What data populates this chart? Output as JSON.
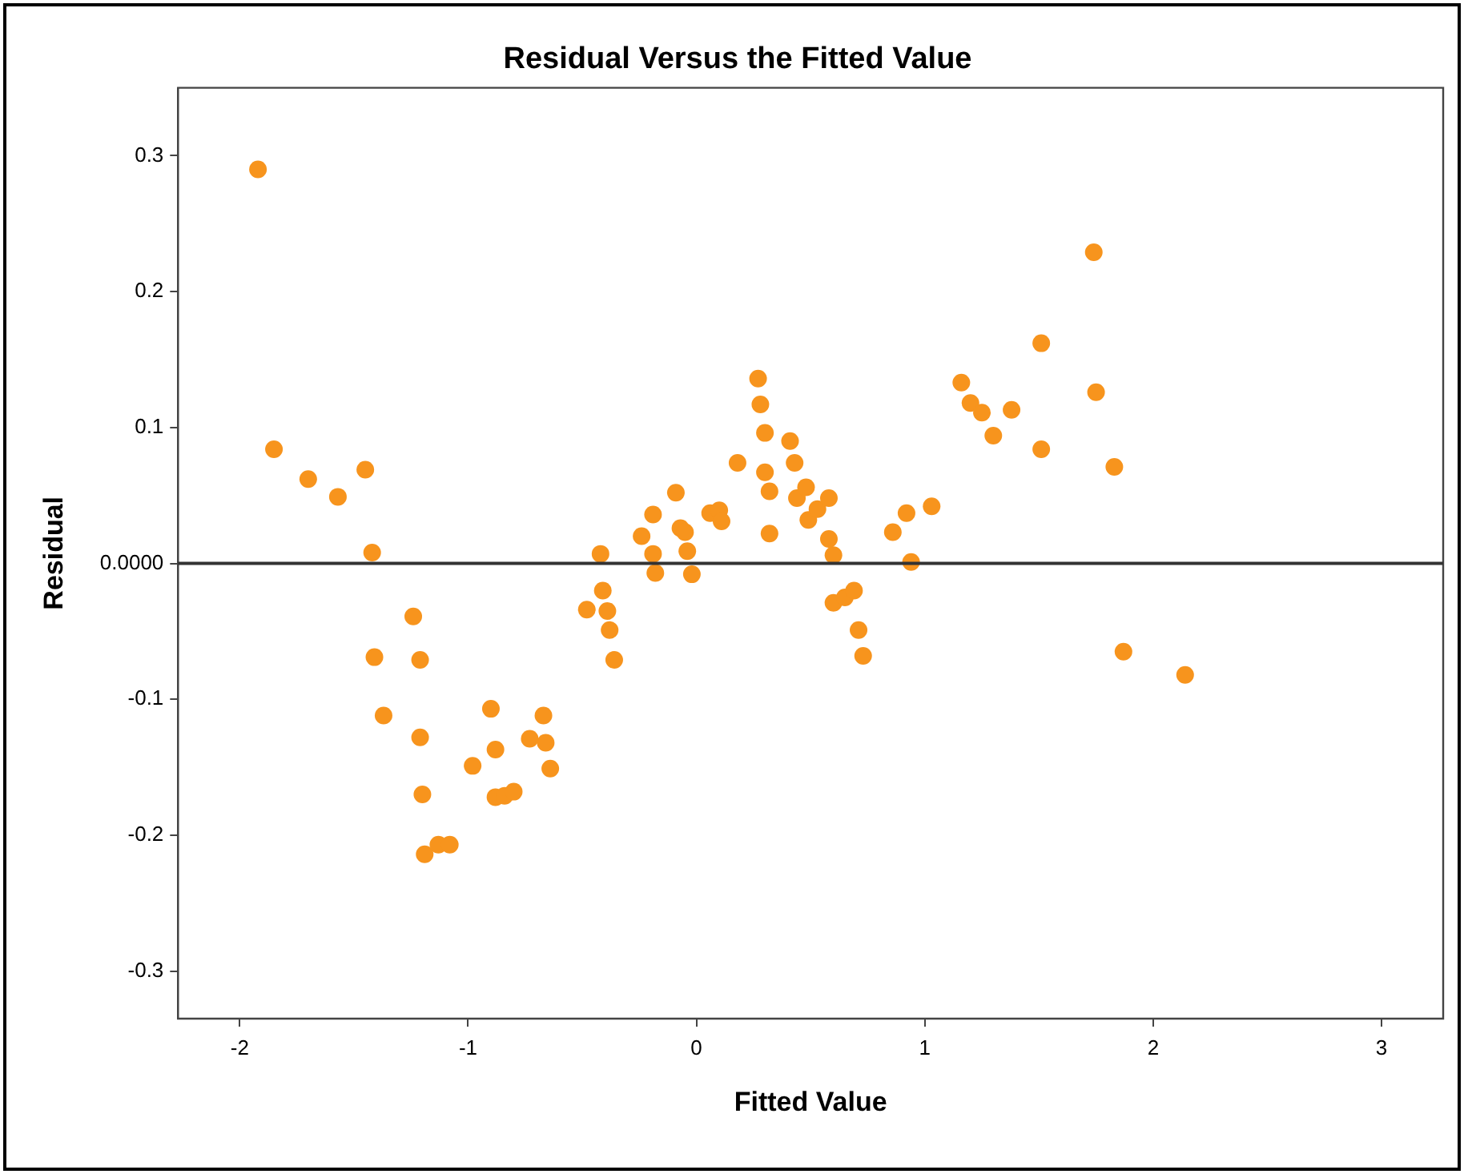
{
  "chart_data": {
    "type": "scatter",
    "title": "Residual Versus the Fitted Value",
    "xlabel": "Fitted Value",
    "ylabel": "Residual",
    "xlim": [
      -2.27,
      3.27
    ],
    "xticks": [
      -2,
      -1,
      0,
      1,
      2,
      3
    ],
    "ylim": [
      -0.335,
      0.35
    ],
    "yticks": [
      -0.3,
      -0.2,
      -0.1,
      {
        "value": 0,
        "label": "0.0000"
      },
      0.1,
      0.2,
      0.3
    ],
    "grid": false,
    "legend": false,
    "marker": "circle",
    "ref_lines": [
      {
        "axis": "y",
        "value": 0,
        "color": "#333333"
      }
    ],
    "series": [
      {
        "color": "#f7941d",
        "x": [
          -1.92,
          -1.85,
          -1.7,
          -1.57,
          -1.45,
          -1.42,
          -1.41,
          -1.37,
          -1.24,
          -1.21,
          -1.21,
          -1.2,
          -1.19,
          -1.13,
          -1.08,
          -0.98,
          -0.9,
          -0.88,
          -0.88,
          -0.84,
          -0.8,
          -0.73,
          -0.67,
          -0.66,
          -0.64,
          -0.48,
          -0.42,
          -0.41,
          -0.39,
          -0.38,
          -0.36,
          -0.24,
          -0.19,
          -0.19,
          -0.18,
          -0.09,
          -0.07,
          -0.05,
          -0.04,
          -0.02,
          0.06,
          0.1,
          0.11,
          0.18,
          0.27,
          0.28,
          0.3,
          0.3,
          0.32,
          0.32,
          0.41,
          0.43,
          0.44,
          0.48,
          0.49,
          0.53,
          0.58,
          0.58,
          0.6,
          0.6,
          0.65,
          0.69,
          0.71,
          0.73,
          0.86,
          0.92,
          0.94,
          1.03,
          1.16,
          1.2,
          1.25,
          1.3,
          1.38,
          1.51,
          1.51,
          1.74,
          1.75,
          1.83,
          1.87,
          2.14
        ],
        "values": [
          0.29,
          0.084,
          0.062,
          0.049,
          0.069,
          0.008,
          -0.069,
          -0.112,
          -0.039,
          -0.071,
          -0.128,
          -0.17,
          -0.214,
          -0.207,
          -0.207,
          -0.149,
          -0.107,
          -0.137,
          -0.172,
          -0.171,
          -0.168,
          -0.129,
          -0.112,
          -0.132,
          -0.151,
          -0.034,
          0.007,
          -0.02,
          -0.035,
          -0.049,
          -0.071,
          0.02,
          0.036,
          0.007,
          -0.007,
          0.052,
          0.026,
          0.023,
          0.009,
          -0.008,
          0.037,
          0.039,
          0.031,
          0.074,
          0.136,
          0.117,
          0.096,
          0.067,
          0.053,
          0.022,
          0.09,
          0.074,
          0.048,
          0.056,
          0.032,
          0.04,
          0.048,
          0.018,
          0.006,
          -0.029,
          -0.025,
          -0.02,
          -0.049,
          -0.068,
          0.023,
          0.037,
          0.001,
          0.042,
          0.133,
          0.118,
          0.111,
          0.094,
          0.113,
          0.162,
          0.084,
          0.229,
          0.126,
          0.071,
          -0.065,
          -0.082
        ]
      }
    ]
  }
}
